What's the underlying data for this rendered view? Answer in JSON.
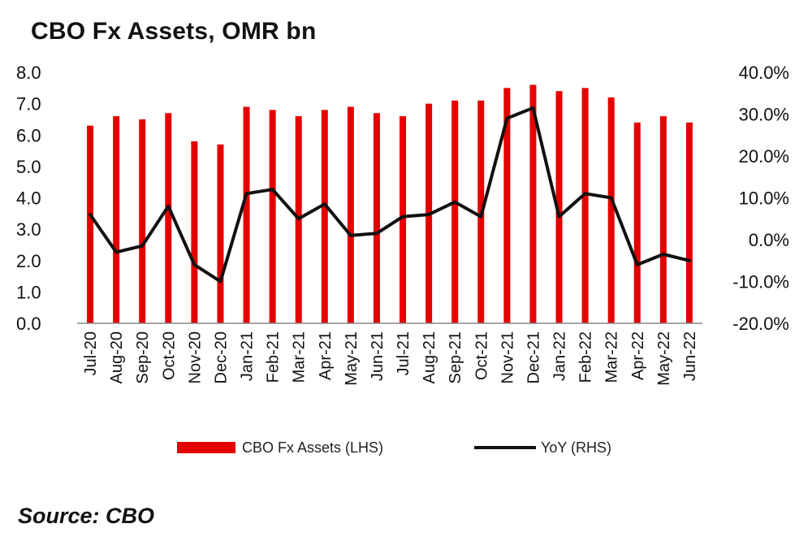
{
  "title": "CBO Fx Assets, OMR bn",
  "source": "Source: CBO",
  "colors": {
    "bars": "#e50000",
    "line": "#111111",
    "axis": "#888888"
  },
  "chart_data": {
    "type": "bar",
    "title": "CBO Fx Assets, OMR bn",
    "categories": [
      "Jul-20",
      "Aug-20",
      "Sep-20",
      "Oct-20",
      "Nov-20",
      "Dec-20",
      "Jan-21",
      "Feb-21",
      "Mar-21",
      "Apr-21",
      "May-21",
      "Jun-21",
      "Jul-21",
      "Aug-21",
      "Sep-21",
      "Oct-21",
      "Nov-21",
      "Dec-21",
      "Jan-22",
      "Feb-22",
      "Mar-22",
      "Apr-22",
      "May-22",
      "Jun-22"
    ],
    "series": [
      {
        "name": "CBO Fx Assets (LHS)",
        "type": "bar",
        "axis": "left",
        "values": [
          6.3,
          6.6,
          6.5,
          6.7,
          5.8,
          5.7,
          6.9,
          6.8,
          6.6,
          6.8,
          6.9,
          6.7,
          6.6,
          7.0,
          7.1,
          7.1,
          7.5,
          7.6,
          7.4,
          7.5,
          7.2,
          6.4,
          6.6,
          6.4
        ]
      },
      {
        "name": "YoY (RHS)",
        "type": "line",
        "axis": "right",
        "values": [
          6.0,
          -3.0,
          -1.5,
          8.0,
          -6.0,
          -10.0,
          11.0,
          12.0,
          5.0,
          8.5,
          1.0,
          1.5,
          5.5,
          6.0,
          9.0,
          5.5,
          29.0,
          31.5,
          5.5,
          11.0,
          10.0,
          -6.0,
          -3.5,
          -5.0
        ]
      }
    ],
    "y_left": {
      "ylim": [
        0,
        8
      ],
      "ticks": [
        "0.0",
        "1.0",
        "2.0",
        "3.0",
        "4.0",
        "5.0",
        "6.0",
        "7.0",
        "8.0"
      ]
    },
    "y_right": {
      "ylim": [
        -20,
        40
      ],
      "ticks": [
        "-20.0%",
        "-10.0%",
        "0.0%",
        "10.0%",
        "20.0%",
        "30.0%",
        "40.0%"
      ]
    },
    "grid": false,
    "legend_position": "bottom"
  }
}
